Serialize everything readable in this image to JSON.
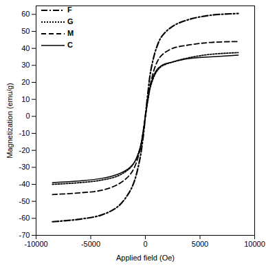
{
  "chart_data": {
    "type": "line",
    "x_label": "Applied field (Oe)",
    "y_label": "Magnetization (emu/g)",
    "x": [
      -8500,
      -6000,
      -4000,
      -2500,
      -1500,
      -1000,
      -500,
      -200,
      0,
      200,
      500,
      1000,
      1500,
      2500,
      4000,
      6000,
      8500
    ],
    "series": [
      {
        "name": "F",
        "color": "#000000",
        "line_style": "dashdot",
        "values": [
          -62,
          -60.5,
          -58,
          -53,
          -45,
          -38,
          -25,
          -12,
          0,
          12,
          27,
          40,
          47,
          53,
          57,
          59.5,
          60.5
        ]
      },
      {
        "name": "G",
        "color": "#000000",
        "line_style": "dotted",
        "values": [
          -40,
          -39,
          -37.5,
          -35,
          -31,
          -27,
          -19,
          -9,
          0,
          8,
          18,
          26,
          29.5,
          32,
          34.5,
          36.5,
          37.5
        ]
      },
      {
        "name": "M",
        "color": "#000000",
        "line_style": "dashed",
        "values": [
          -46,
          -45,
          -43.5,
          -40,
          -35,
          -30,
          -20,
          -9,
          0,
          9,
          20,
          31,
          36,
          40,
          42,
          43.5,
          44
        ]
      },
      {
        "name": "C",
        "color": "#000000",
        "line_style": "solid",
        "values": [
          -39,
          -38,
          -36.5,
          -34,
          -30.5,
          -27,
          -19,
          -9,
          0,
          9,
          19,
          27,
          30,
          32,
          34,
          35,
          36
        ]
      }
    ],
    "xlim": [
      -10000,
      10000
    ],
    "xticks": [
      -10000,
      -5000,
      0,
      5000,
      10000
    ],
    "ylim": [
      -70,
      65
    ],
    "yticks": [
      -70,
      -60,
      -50,
      -40,
      -30,
      -20,
      -10,
      0,
      10,
      20,
      30,
      40,
      50,
      60
    ],
    "grid": false,
    "legend": "top-left"
  }
}
